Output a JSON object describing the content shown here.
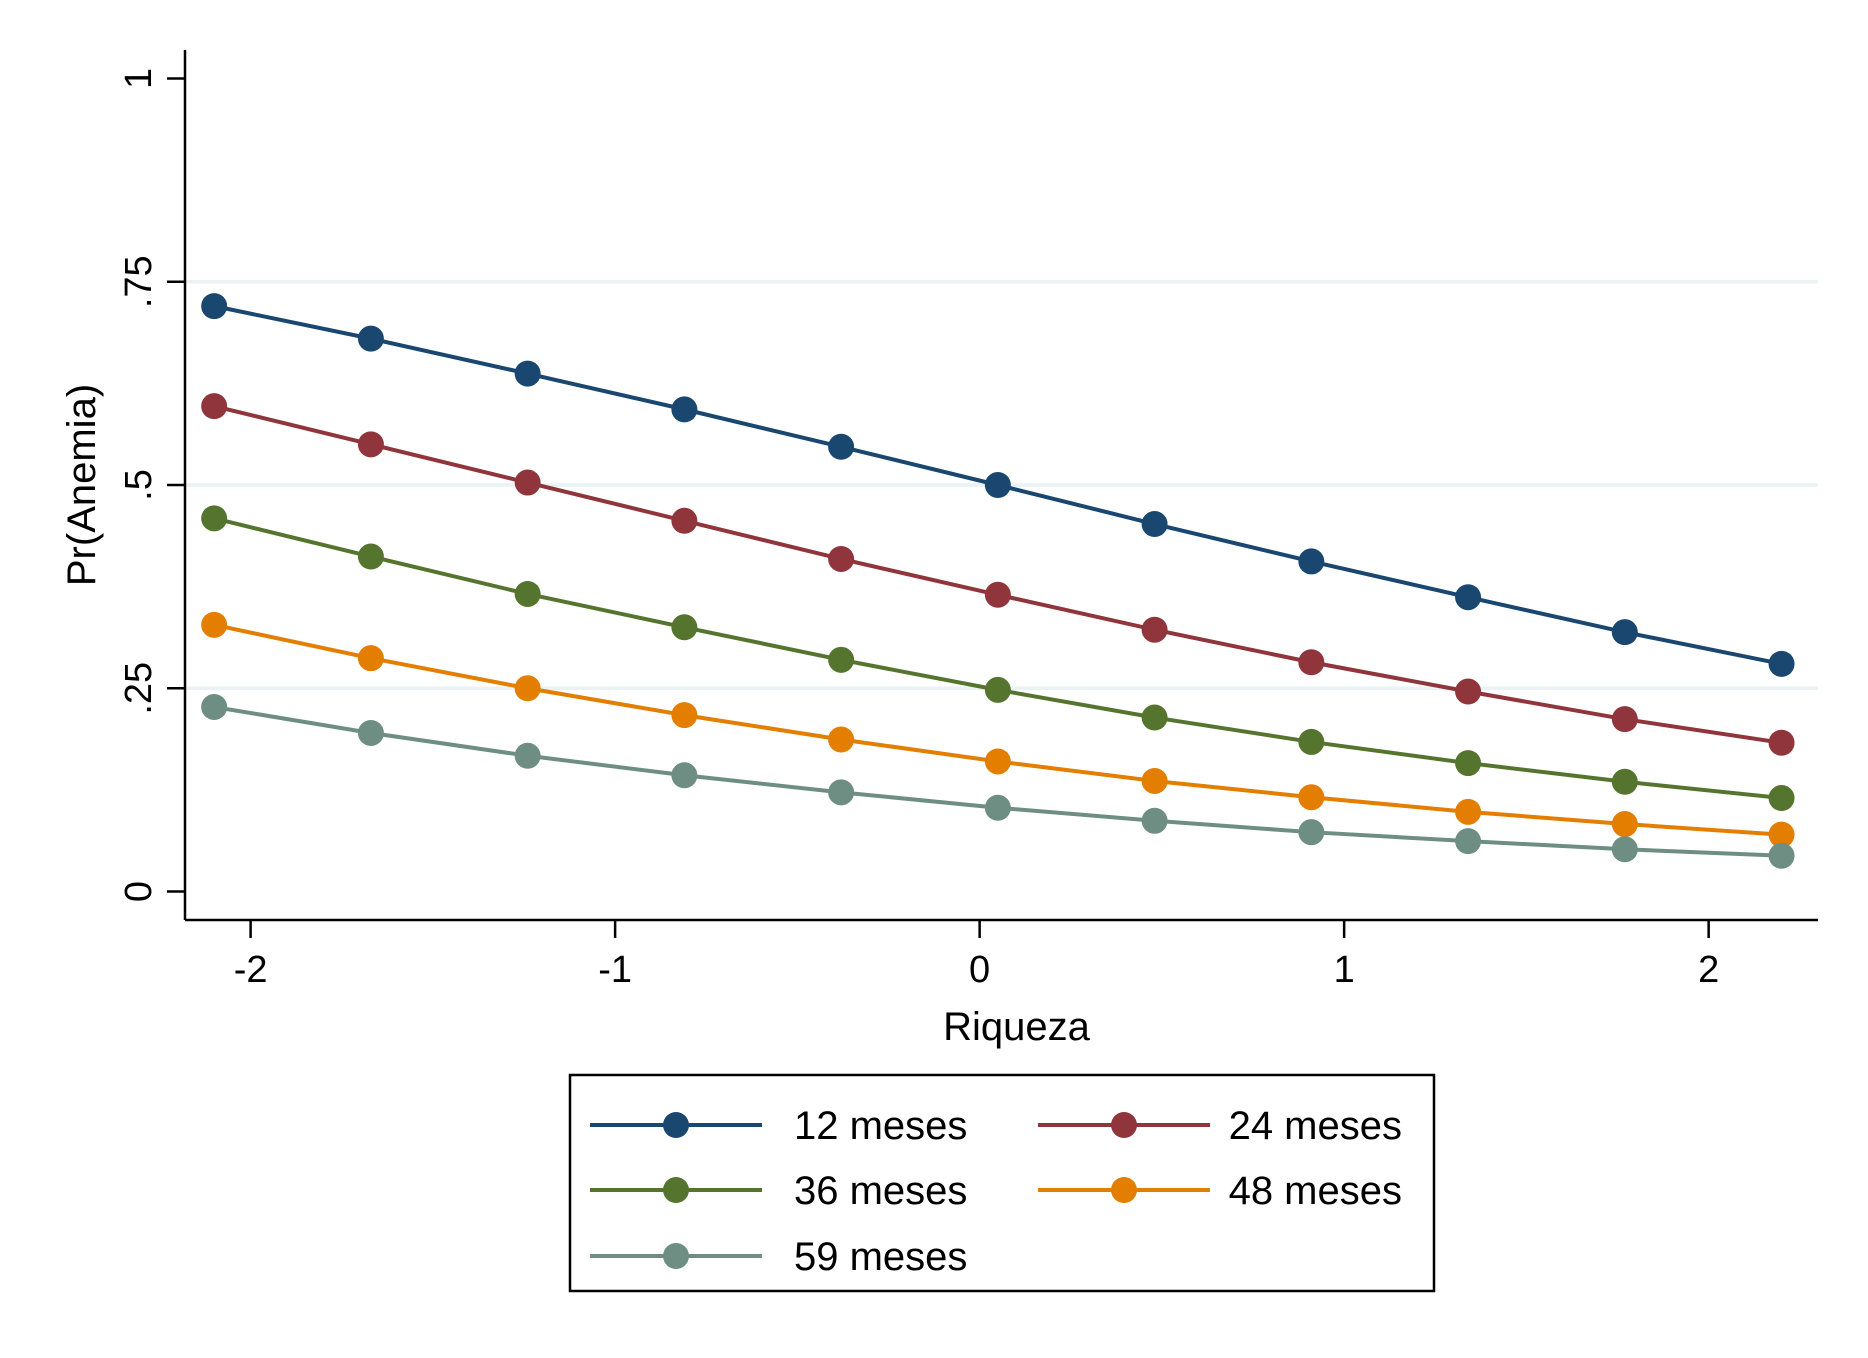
{
  "chart_data": {
    "type": "line",
    "title": "",
    "xlabel": "Riqueza",
    "ylabel": "Pr(Anemia)",
    "xlim": [
      -2.18,
      2.3
    ],
    "ylim": [
      -0.035,
      1.035
    ],
    "x_ticks": [
      {
        "value": -2,
        "label": "-2"
      },
      {
        "value": -1,
        "label": "-1"
      },
      {
        "value": 0,
        "label": "0"
      },
      {
        "value": 1,
        "label": "1"
      },
      {
        "value": 2,
        "label": "2"
      }
    ],
    "y_ticks": [
      {
        "value": 0,
        "label": "0"
      },
      {
        "value": 0.25,
        "label": ".25"
      },
      {
        "value": 0.5,
        "label": ".5"
      },
      {
        "value": 0.75,
        "label": ".75"
      },
      {
        "value": 1,
        "label": "1"
      }
    ],
    "grid": "horizontal",
    "x": [
      -2.1,
      -1.67,
      -1.24,
      -0.81,
      -0.38,
      0.05,
      0.48,
      0.91,
      1.34,
      1.77,
      2.2
    ],
    "series": [
      {
        "name": "12 meses",
        "color": "#1a476f",
        "values": [
          0.72,
          0.68,
          0.637,
          0.593,
          0.547,
          0.5,
          0.452,
          0.406,
          0.362,
          0.319,
          0.28
        ]
      },
      {
        "name": "24 meses",
        "color": "#90353b",
        "values": [
          0.597,
          0.55,
          0.503,
          0.456,
          0.409,
          0.365,
          0.322,
          0.282,
          0.246,
          0.212,
          0.183
        ]
      },
      {
        "name": "36 meses",
        "color": "#55752f",
        "values": [
          0.459,
          0.412,
          0.366,
          0.325,
          0.285,
          0.248,
          0.214,
          0.184,
          0.158,
          0.135,
          0.115
        ]
      },
      {
        "name": "48 meses",
        "color": "#e37e00",
        "values": [
          0.328,
          0.287,
          0.25,
          0.217,
          0.187,
          0.16,
          0.136,
          0.116,
          0.098,
          0.083,
          0.07
        ]
      },
      {
        "name": "59 meses",
        "color": "#6e8e84",
        "values": [
          0.227,
          0.195,
          0.167,
          0.143,
          0.122,
          0.103,
          0.087,
          0.073,
          0.062,
          0.052,
          0.044
        ]
      }
    ],
    "legend_position": "bottom"
  }
}
